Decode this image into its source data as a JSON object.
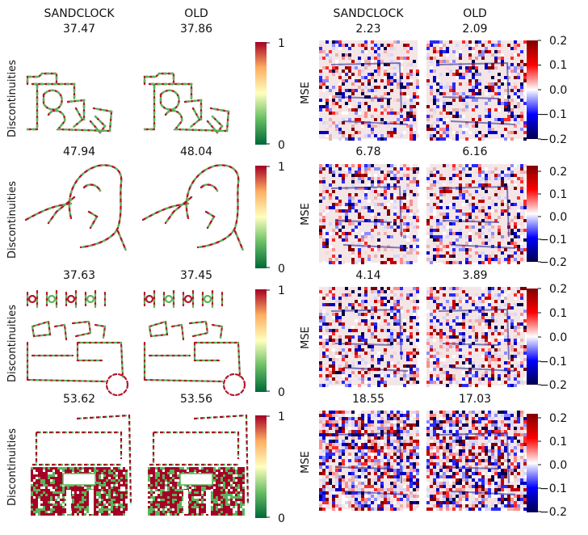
{
  "figure": {
    "column_titles": [
      "SANDCLOCK",
      "OLD",
      "SANDCLOCK",
      "OLD"
    ],
    "left_row_label": "Discontinuities",
    "right_row_label": "MSE"
  },
  "chart_data": [
    {
      "type": "heatmap",
      "metric": "Discontinuities",
      "colormap": "RdYlGn_r",
      "colors": [
        "#006837",
        "#66bd63",
        "#ffffbf",
        "#fdae61",
        "#a50026"
      ],
      "colorbar_range": [
        0,
        1
      ],
      "colorbar_ticks": [
        "0",
        "1"
      ],
      "panels": [
        {
          "row": 1,
          "values": {
            "SANDCLOCK": "37.47",
            "OLD": "37.86"
          }
        },
        {
          "row": 2,
          "values": {
            "SANDCLOCK": "47.94",
            "OLD": "48.04"
          }
        },
        {
          "row": 3,
          "values": {
            "SANDCLOCK": "37.63",
            "OLD": "37.45"
          }
        },
        {
          "row": 4,
          "values": {
            "SANDCLOCK": "53.62",
            "OLD": "53.56"
          }
        }
      ]
    },
    {
      "type": "heatmap",
      "metric": "MSE",
      "colormap": "seismic",
      "colors": [
        "#00004c",
        "#0000ff",
        "#ffffff",
        "#ff0000",
        "#7f0000"
      ],
      "colorbar_range": [
        -0.2,
        0.2
      ],
      "colorbar_ticks": [
        "0.2",
        "0.1",
        "0.0",
        "−0.1",
        "−0.2"
      ],
      "panels": [
        {
          "row": 1,
          "values": {
            "SANDCLOCK": "2.23",
            "OLD": "2.09"
          }
        },
        {
          "row": 2,
          "values": {
            "SANDCLOCK": "6.78",
            "OLD": "6.16"
          }
        },
        {
          "row": 3,
          "values": {
            "SANDCLOCK": "4.14",
            "OLD": "3.89"
          }
        },
        {
          "row": 4,
          "values": {
            "SANDCLOCK": "18.55",
            "OLD": "17.03"
          }
        }
      ]
    }
  ]
}
